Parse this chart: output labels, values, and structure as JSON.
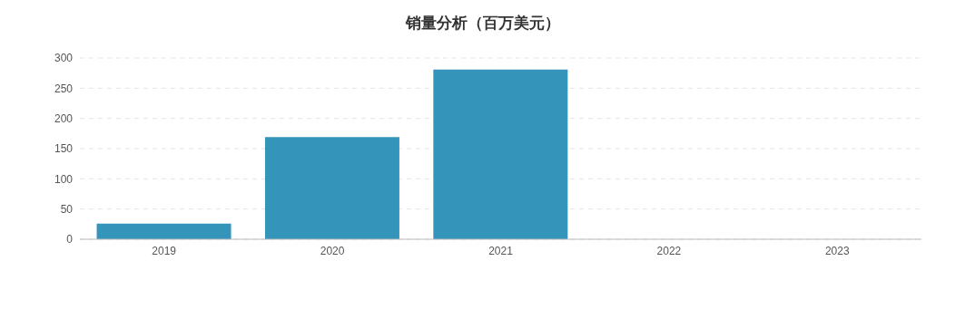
{
  "chart_data": {
    "type": "bar",
    "title": "销量分析（百万美元）",
    "categories": [
      "2019",
      "2020",
      "2021",
      "2022",
      "2023"
    ],
    "series": [
      {
        "color": "#3494ba",
        "values": [
          26,
          169,
          281,
          null,
          null
        ]
      }
    ],
    "ylim": [
      0,
      300
    ],
    "yticks": [
      0,
      50,
      100,
      150,
      200,
      250,
      300
    ],
    "grid": "y"
  }
}
